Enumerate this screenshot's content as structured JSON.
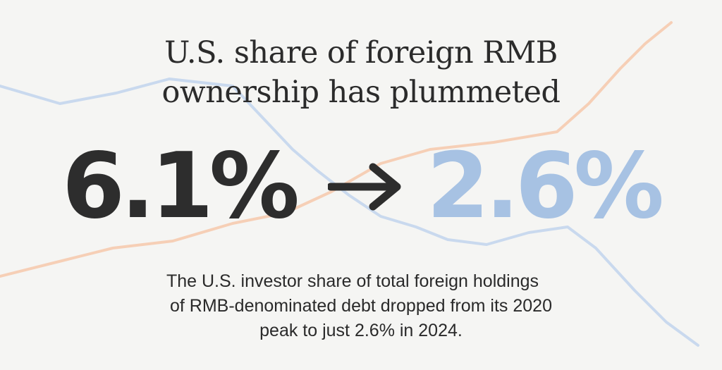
{
  "title": {
    "line1": "U.S. share of foreign RMB",
    "line2": "ownership has plummeted"
  },
  "stats": {
    "from": "6.1%",
    "to": "2.6%",
    "arrow_icon": "arrow-right-icon"
  },
  "description": {
    "line1": "The U.S. investor share of total foreign holdings",
    "line2": "of RMB-denominated debt dropped from its 2020",
    "line3": "peak to just 2.6% in 2024."
  },
  "colors": {
    "background": "#f5f5f3",
    "heading": "#2b2b2b",
    "old_value": "#2d2d2d",
    "new_value": "#a7c2e3",
    "decor_line_blue": "#c9d9ee",
    "decor_line_orange": "#f6cfb6"
  }
}
